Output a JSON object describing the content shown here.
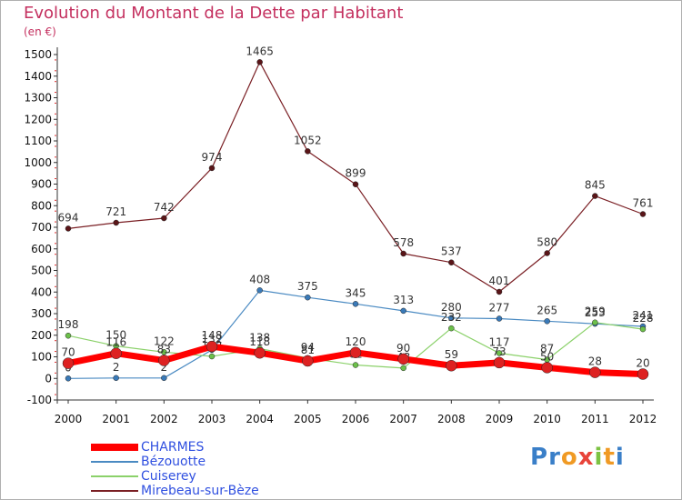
{
  "page": {
    "title": "Evolution du Montant de la Dette par Habitant",
    "unit": "(en €)",
    "logo": [
      {
        "ch": "P",
        "color": "#3a7fc8"
      },
      {
        "ch": "r",
        "color": "#3a7fc8"
      },
      {
        "ch": "o",
        "color": "#f09a24"
      },
      {
        "ch": "x",
        "color": "#e8443a"
      },
      {
        "ch": "i",
        "color": "#7cc242"
      },
      {
        "ch": "t",
        "color": "#f09a24"
      },
      {
        "ch": "i",
        "color": "#3a7fc8"
      }
    ]
  },
  "chart_data": {
    "type": "line",
    "title": "Evolution du Montant de la Dette par Habitant",
    "ylabel": "(en €)",
    "xlabel": "",
    "categories": [
      "2000",
      "2001",
      "2002",
      "2003",
      "2004",
      "2005",
      "2006",
      "2007",
      "2008",
      "2009",
      "2010",
      "2011",
      "2012"
    ],
    "ylim": [
      -100,
      1500
    ],
    "yticks": [
      -100,
      0,
      100,
      200,
      300,
      400,
      500,
      600,
      700,
      800,
      900,
      1000,
      1100,
      1200,
      1300,
      1400,
      1500
    ],
    "grid": false,
    "legend": "bottom-left",
    "series": [
      {
        "name": "Mirebeau-sur-Bèze",
        "color": "#7a1f24",
        "values": [
          694,
          721,
          742,
          974,
          1465,
          1052,
          899,
          578,
          537,
          401,
          580,
          845,
          761
        ]
      },
      {
        "name": "Bézouotte",
        "color": "#4a8ac2",
        "values": [
          0,
          2,
          2,
          132,
          408,
          375,
          345,
          313,
          280,
          277,
          265,
          253,
          241
        ]
      },
      {
        "name": "Cuiserey",
        "color": "#8bd16a",
        "values": [
          198,
          150,
          122,
          102,
          138,
          94,
          62,
          48,
          232,
          117,
          87,
          259,
          228
        ]
      },
      {
        "name": "CHARMES",
        "color": "#ff0000",
        "values": [
          70,
          116,
          83,
          148,
          118,
          81,
          120,
          90,
          59,
          73,
          50,
          28,
          20
        ]
      }
    ]
  }
}
